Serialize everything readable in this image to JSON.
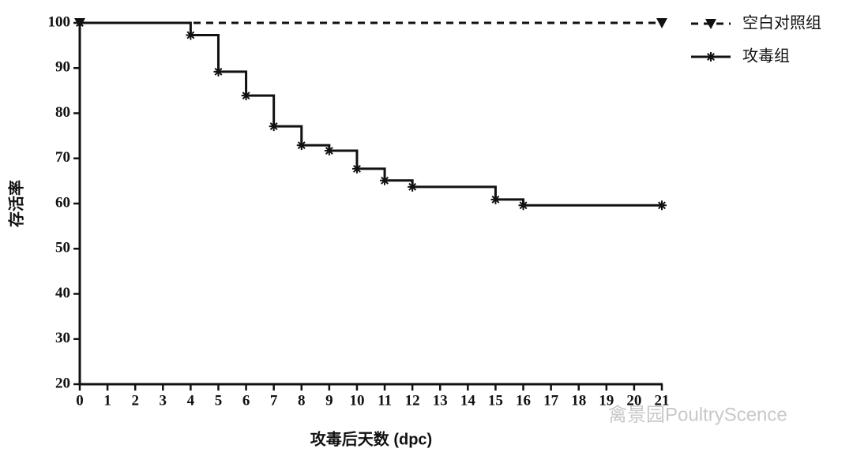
{
  "chart_data": {
    "type": "step",
    "xlabel": "攻毒后天数 (dpc)",
    "ylabel": "存活率",
    "xlim": [
      0,
      21
    ],
    "xticks": [
      0,
      1,
      2,
      3,
      4,
      5,
      6,
      7,
      8,
      9,
      10,
      11,
      12,
      13,
      14,
      15,
      16,
      17,
      18,
      19,
      20,
      21
    ],
    "ylim": [
      20,
      100
    ],
    "yticks": [
      20,
      30,
      40,
      50,
      60,
      70,
      80,
      90,
      100
    ],
    "legend": "upper right",
    "watermark": "禽景园PoultryScence",
    "series": [
      {
        "name": "空白对照组",
        "color": "#111111",
        "dash": true,
        "marker": "triangle-down",
        "x": [
          0,
          21
        ],
        "values": [
          100,
          100
        ]
      },
      {
        "name": "攻毒组",
        "color": "#111111",
        "dash": false,
        "marker": "asterisk",
        "x": [
          0,
          4,
          5,
          6,
          7,
          8,
          9,
          10,
          11,
          12,
          15,
          16,
          21
        ],
        "values": [
          100,
          97.3,
          89.2,
          83.9,
          77.1,
          72.9,
          71.7,
          67.7,
          65.1,
          63.7,
          60.9,
          59.6,
          59.6
        ]
      }
    ]
  }
}
